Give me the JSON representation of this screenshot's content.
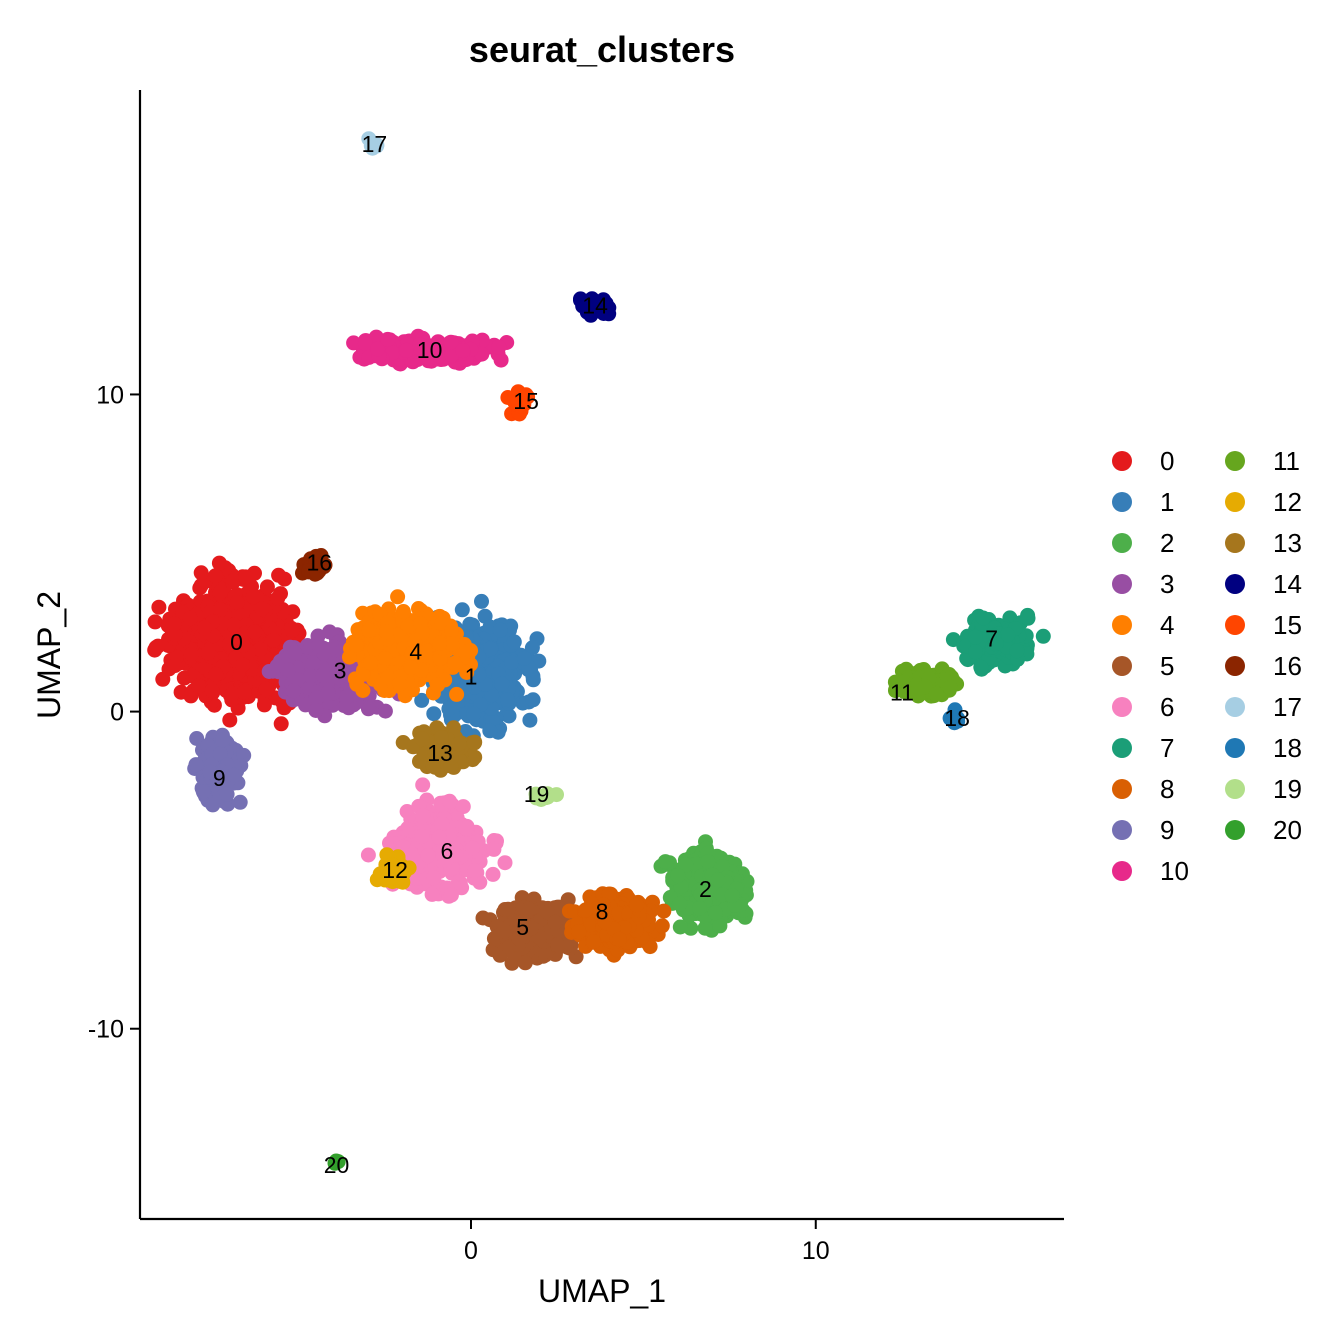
{
  "chart_data": {
    "type": "scatter",
    "title": "seurat_clusters",
    "xlabel": "UMAP_1",
    "ylabel": "UMAP_2",
    "xlim": [
      -9.6,
      17.2
    ],
    "ylim": [
      -16,
      19.6
    ],
    "xticks": [
      0,
      10
    ],
    "yticks": [
      -10,
      0,
      10
    ],
    "grid": false,
    "legend_position": "right",
    "legend_columns": 2,
    "clusters": [
      {
        "name": "0",
        "color": "#E41A1C",
        "center": [
          -6.8,
          2.2
        ],
        "spread": [
          1.6,
          1.5
        ],
        "n": 900,
        "label_pos": [
          -6.8,
          2.2
        ]
      },
      {
        "name": "1",
        "color": "#377EB8",
        "center": [
          0.3,
          1.2
        ],
        "spread": [
          1.2,
          1.3
        ],
        "n": 550,
        "label_pos": [
          0.0,
          1.1
        ]
      },
      {
        "name": "2",
        "color": "#4DAF4A",
        "center": [
          6.9,
          -5.6
        ],
        "spread": [
          0.9,
          1.0
        ],
        "n": 380,
        "label_pos": [
          6.8,
          -5.6
        ]
      },
      {
        "name": "3",
        "color": "#984EA3",
        "center": [
          -3.8,
          1.2
        ],
        "spread": [
          1.4,
          0.9
        ],
        "n": 520,
        "label_pos": [
          -3.8,
          1.3
        ]
      },
      {
        "name": "4",
        "color": "#FF7F00",
        "center": [
          -1.8,
          2.0
        ],
        "spread": [
          1.3,
          1.1
        ],
        "n": 480,
        "label_pos": [
          -1.6,
          1.9
        ]
      },
      {
        "name": "5",
        "color": "#A65628",
        "center": [
          1.9,
          -6.9
        ],
        "spread": [
          0.9,
          0.7
        ],
        "n": 420,
        "label_pos": [
          1.5,
          -6.8
        ]
      },
      {
        "name": "6",
        "color": "#F781BF",
        "center": [
          -1.0,
          -4.2
        ],
        "spread": [
          1.2,
          1.1
        ],
        "n": 400,
        "label_pos": [
          -0.7,
          -4.4
        ]
      },
      {
        "name": "7",
        "color": "#1B9E77",
        "center": [
          15.2,
          2.2
        ],
        "spread": [
          0.8,
          0.6
        ],
        "n": 220,
        "label_pos": [
          15.1,
          2.3
        ]
      },
      {
        "name": "8",
        "color": "#D95F02",
        "center": [
          4.2,
          -6.6
        ],
        "spread": [
          0.9,
          0.7
        ],
        "n": 380,
        "label_pos": [
          3.8,
          -6.3
        ]
      },
      {
        "name": "9",
        "color": "#7570B3",
        "center": [
          -7.3,
          -1.8
        ],
        "spread": [
          0.55,
          0.9
        ],
        "n": 170,
        "label_pos": [
          -7.3,
          -2.1
        ]
      },
      {
        "name": "10",
        "color": "#E7298A",
        "center": [
          -1.3,
          11.4
        ],
        "spread": [
          1.6,
          0.3
        ],
        "n": 300,
        "label_pos": [
          -1.2,
          11.4
        ]
      },
      {
        "name": "11",
        "color": "#66A61E",
        "center": [
          13.2,
          0.9
        ],
        "spread": [
          0.8,
          0.4
        ],
        "n": 130,
        "label_pos": [
          12.5,
          0.6
        ]
      },
      {
        "name": "12",
        "color": "#E6AB02",
        "center": [
          -2.2,
          -5.0
        ],
        "spread": [
          0.35,
          0.35
        ],
        "n": 60,
        "label_pos": [
          -2.2,
          -5.0
        ]
      },
      {
        "name": "13",
        "color": "#A6761D",
        "center": [
          -0.8,
          -1.2
        ],
        "spread": [
          0.9,
          0.5
        ],
        "n": 130,
        "label_pos": [
          -0.9,
          -1.3
        ]
      },
      {
        "name": "14",
        "color": "#000080",
        "center": [
          3.6,
          12.8
        ],
        "spread": [
          0.35,
          0.25
        ],
        "n": 40,
        "label_pos": [
          3.6,
          12.8
        ]
      },
      {
        "name": "15",
        "color": "#FF4500",
        "center": [
          1.4,
          9.8
        ],
        "spread": [
          0.3,
          0.4
        ],
        "n": 30,
        "label_pos": [
          1.6,
          9.8
        ]
      },
      {
        "name": "16",
        "color": "#8B2500",
        "center": [
          -4.5,
          4.6
        ],
        "spread": [
          0.3,
          0.3
        ],
        "n": 35,
        "label_pos": [
          -4.4,
          4.7
        ]
      },
      {
        "name": "17",
        "color": "#A6CEE3",
        "center": [
          -2.8,
          17.9
        ],
        "spread": [
          0.12,
          0.12
        ],
        "n": 6,
        "label_pos": [
          -2.8,
          17.9
        ]
      },
      {
        "name": "18",
        "color": "#1F78B4",
        "center": [
          14.0,
          -0.2
        ],
        "spread": [
          0.15,
          0.2
        ],
        "n": 8,
        "label_pos": [
          14.1,
          -0.2
        ]
      },
      {
        "name": "19",
        "color": "#B2DF8A",
        "center": [
          2.2,
          -2.7
        ],
        "spread": [
          0.4,
          0.2
        ],
        "n": 10,
        "label_pos": [
          1.9,
          -2.6
        ]
      },
      {
        "name": "20",
        "color": "#33A02C",
        "center": [
          -3.9,
          -14.2
        ],
        "spread": [
          0.08,
          0.08
        ],
        "n": 3,
        "label_pos": [
          -3.9,
          -14.3
        ]
      }
    ]
  }
}
